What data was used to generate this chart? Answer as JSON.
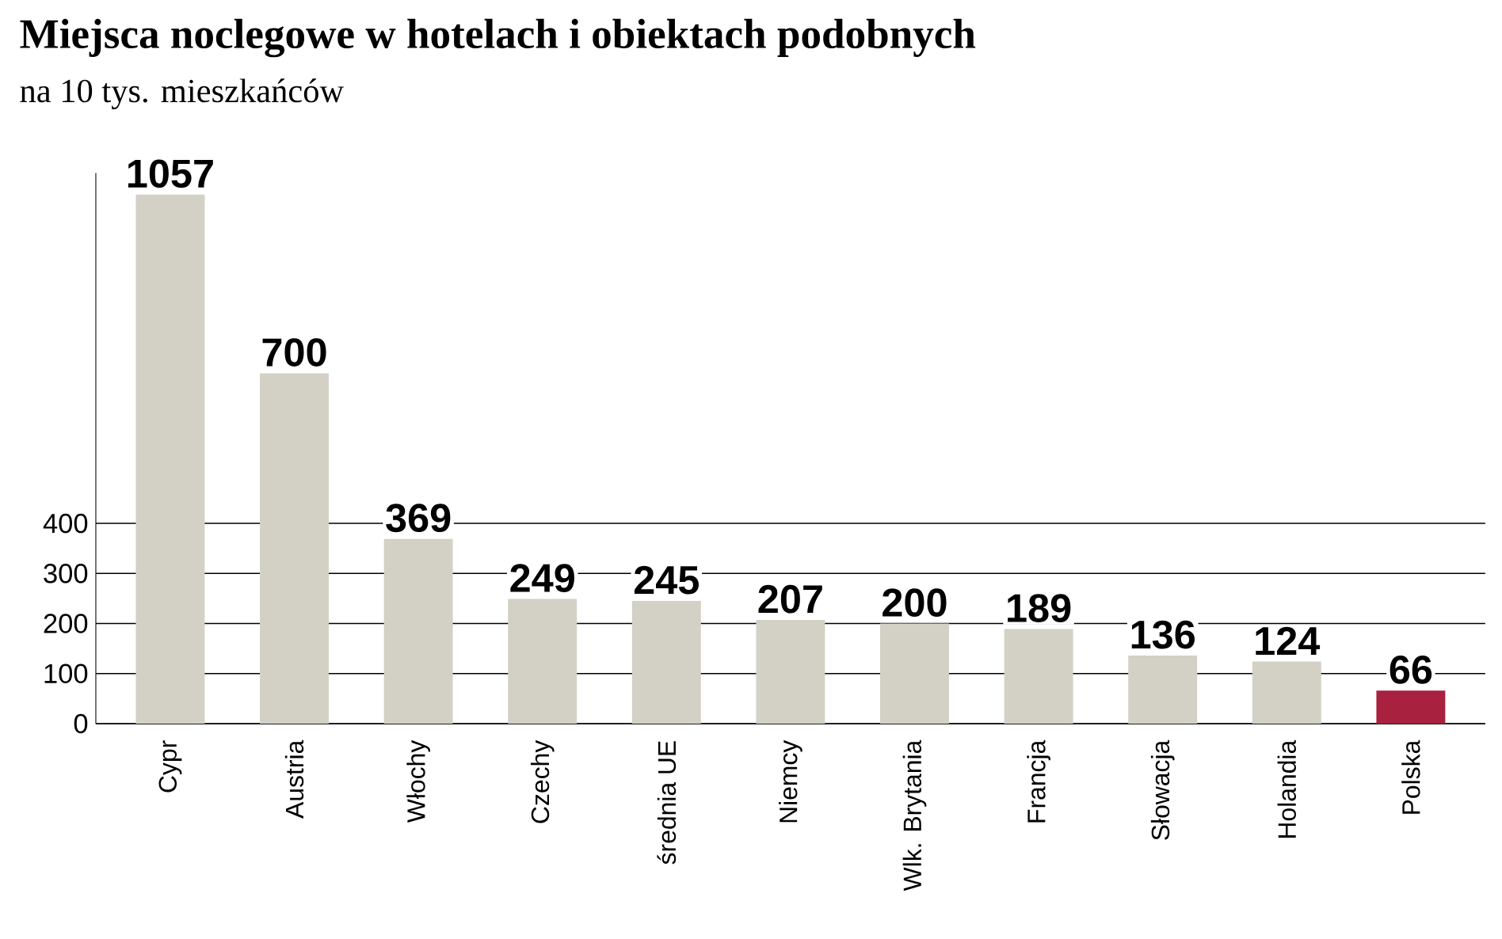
{
  "chart_data": {
    "type": "bar",
    "title": "Miejsca noclegowe w hotelach i obiektach podobnych",
    "subtitle": "na 10 tys. mieszkańców",
    "categories": [
      "Cypr",
      "Austria",
      "Włochy",
      "Czechy",
      "średnia UE",
      "Niemcy",
      "Wlk. Brytania",
      "Francja",
      "Słowacja",
      "Holandia",
      "Polska"
    ],
    "values": [
      1057,
      700,
      369,
      249,
      245,
      207,
      200,
      189,
      136,
      124,
      66
    ],
    "colors": [
      "#d3d1c5",
      "#d3d1c5",
      "#d3d1c5",
      "#d3d1c5",
      "#d3d1c5",
      "#d3d1c5",
      "#d3d1c5",
      "#d3d1c5",
      "#d3d1c5",
      "#d3d1c5",
      "#a8213f"
    ],
    "data_labels": true,
    "ylim": [
      0,
      1100
    ],
    "yticks": [
      0,
      100,
      200,
      300,
      400
    ],
    "grid": "y"
  }
}
